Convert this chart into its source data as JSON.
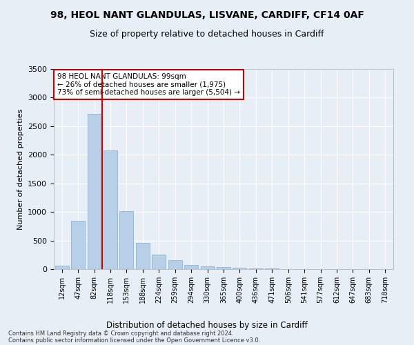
{
  "title": "98, HEOL NANT GLANDULAS, LISVANE, CARDIFF, CF14 0AF",
  "subtitle": "Size of property relative to detached houses in Cardiff",
  "xlabel": "Distribution of detached houses by size in Cardiff",
  "ylabel": "Number of detached properties",
  "footnote1": "Contains HM Land Registry data © Crown copyright and database right 2024.",
  "footnote2": "Contains public sector information licensed under the Open Government Licence v3.0.",
  "annotation_title": "98 HEOL NANT GLANDULAS: 99sqm",
  "annotation_line2": "← 26% of detached houses are smaller (1,975)",
  "annotation_line3": "73% of semi-detached houses are larger (5,504) →",
  "bar_labels": [
    "12sqm",
    "47sqm",
    "82sqm",
    "118sqm",
    "153sqm",
    "188sqm",
    "224sqm",
    "259sqm",
    "294sqm",
    "330sqm",
    "365sqm",
    "400sqm",
    "436sqm",
    "471sqm",
    "506sqm",
    "541sqm",
    "577sqm",
    "612sqm",
    "647sqm",
    "683sqm",
    "718sqm"
  ],
  "bar_values": [
    55,
    850,
    2720,
    2070,
    1010,
    455,
    250,
    160,
    70,
    50,
    40,
    25,
    15,
    10,
    5,
    3,
    2,
    1,
    1,
    0,
    0
  ],
  "bar_color": "#b8cfe8",
  "bar_edge_color": "#7aadd4",
  "vline_color": "#cc0000",
  "ylim": [
    0,
    3500
  ],
  "yticks": [
    0,
    500,
    1000,
    1500,
    2000,
    2500,
    3000,
    3500
  ],
  "bg_color": "#e8eef6",
  "axes_bg_color": "#e8eef6",
  "grid_color": "#ffffff",
  "annotation_box_color": "#ffffff",
  "annotation_box_edge": "#cc0000",
  "title_fontsize": 10,
  "subtitle_fontsize": 9
}
